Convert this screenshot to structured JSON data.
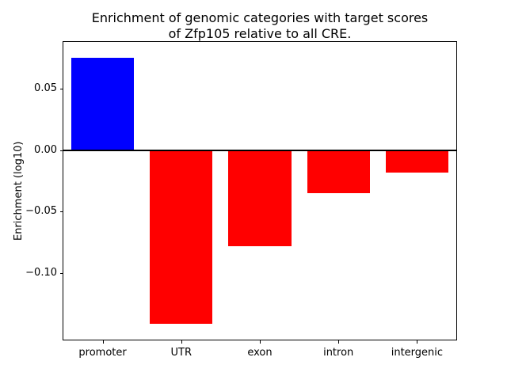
{
  "figure": {
    "title": "Enrichment of genomic categories with target scores\nof Zfp105 relative to all CRE."
  },
  "chart_data": {
    "type": "bar",
    "title": "Enrichment of genomic categories with target scores of Zfp105 relative to all CRE.",
    "categories": [
      "promoter",
      "UTR",
      "exon",
      "intron",
      "intergenic"
    ],
    "values": [
      0.075,
      -0.141,
      -0.078,
      -0.035,
      -0.018
    ],
    "bar_colors": [
      "#0000ff",
      "#ff0000",
      "#ff0000",
      "#ff0000",
      "#ff0000"
    ],
    "positive_color": "#0000ff",
    "negative_color": "#ff0000",
    "xlabel": "",
    "ylabel": "Enrichment (log10)",
    "ylim": [
      -0.154,
      0.088
    ],
    "yticks": [
      {
        "value": 0.05,
        "label": "0.05"
      },
      {
        "value": 0.0,
        "label": "0.00"
      },
      {
        "value": -0.05,
        "label": "−0.05"
      },
      {
        "value": -0.1,
        "label": "−0.10"
      }
    ],
    "zero_line": true,
    "grid": false,
    "legend": null
  }
}
